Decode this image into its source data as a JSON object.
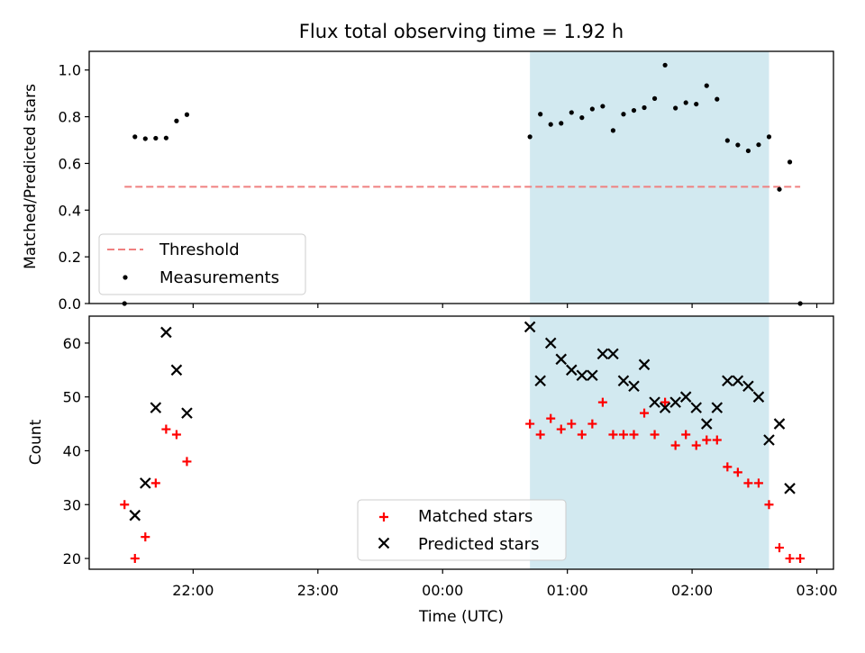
{
  "chart_data": {
    "title": "Flux total observing time = 1.92 h",
    "xlabel": "Time (UTC)",
    "x_tick_labels": [
      "22:00",
      "23:00",
      "00:00",
      "01:00",
      "02:00",
      "03:00"
    ],
    "x_tick_times": [
      "2000-01-01T22:00",
      "2000-01-01T23:00",
      "2000-01-02T00:00",
      "2000-01-02T01:00",
      "2000-01-02T02:00",
      "2000-01-02T03:00"
    ],
    "xlim": [
      "2000-01-01T21:10",
      "2000-01-02T03:08"
    ],
    "shaded_span": [
      "2000-01-02T00:42",
      "2000-01-02T02:37"
    ],
    "shaded_color": "#d2e9f0",
    "panels": [
      {
        "type": "scatter",
        "ylabel": "Matched/Predicted stars",
        "ylim": [
          0,
          1.08
        ],
        "y_ticks": [
          "0.0",
          "0.2",
          "0.4",
          "0.6",
          "0.8",
          "1.0"
        ],
        "threshold": {
          "name": "Threshold",
          "value": 0.5,
          "x": [
            "2000-01-01T21:27",
            "2000-01-02T02:52"
          ],
          "color": "#f08080"
        },
        "legend": [
          "Threshold",
          "Measurements"
        ],
        "legend_loc": "lower left",
        "series": [
          {
            "name": "Measurements",
            "color": "#000000",
            "marker": "dot",
            "points": [
              [
                "2000-01-01T21:27",
                0.0
              ],
              [
                "2000-01-01T21:32",
                0.714
              ],
              [
                "2000-01-01T21:37",
                0.706
              ],
              [
                "2000-01-01T21:42",
                0.708
              ],
              [
                "2000-01-01T21:47",
                0.709
              ],
              [
                "2000-01-01T21:52",
                0.782
              ],
              [
                "2000-01-01T21:57",
                0.809
              ],
              [
                "2000-01-02T00:42",
                0.714
              ],
              [
                "2000-01-02T00:47",
                0.811
              ],
              [
                "2000-01-02T00:52",
                0.767
              ],
              [
                "2000-01-02T00:57",
                0.772
              ],
              [
                "2000-01-02T01:02",
                0.818
              ],
              [
                "2000-01-02T01:07",
                0.796
              ],
              [
                "2000-01-02T01:12",
                0.833
              ],
              [
                "2000-01-02T01:17",
                0.845
              ],
              [
                "2000-01-02T01:22",
                0.741
              ],
              [
                "2000-01-02T01:27",
                0.811
              ],
              [
                "2000-01-02T01:32",
                0.827
              ],
              [
                "2000-01-02T01:37",
                0.839
              ],
              [
                "2000-01-02T01:42",
                0.878
              ],
              [
                "2000-01-02T01:47",
                1.021
              ],
              [
                "2000-01-02T01:52",
                0.837
              ],
              [
                "2000-01-02T01:57",
                0.86
              ],
              [
                "2000-01-02T02:02",
                0.854
              ],
              [
                "2000-01-02T02:07",
                0.933
              ],
              [
                "2000-01-02T02:12",
                0.875
              ],
              [
                "2000-01-02T02:17",
                0.698
              ],
              [
                "2000-01-02T02:22",
                0.679
              ],
              [
                "2000-01-02T02:27",
                0.654
              ],
              [
                "2000-01-02T02:32",
                0.68
              ],
              [
                "2000-01-02T02:37",
                0.714
              ],
              [
                "2000-01-02T02:42",
                0.489
              ],
              [
                "2000-01-02T02:47",
                0.606
              ],
              [
                "2000-01-02T02:52",
                0.0
              ]
            ]
          }
        ]
      },
      {
        "type": "scatter",
        "ylabel": "Count",
        "ylim": [
          18,
          65
        ],
        "y_ticks": [
          "20",
          "30",
          "40",
          "50",
          "60"
        ],
        "legend": [
          "Matched stars",
          "Predicted stars"
        ],
        "legend_loc": "lower center",
        "series": [
          {
            "name": "Matched stars",
            "color": "#ff0000",
            "marker": "plus",
            "points": [
              [
                "2000-01-01T21:27",
                30
              ],
              [
                "2000-01-01T21:32",
                20
              ],
              [
                "2000-01-01T21:37",
                24
              ],
              [
                "2000-01-01T21:42",
                34
              ],
              [
                "2000-01-01T21:47",
                44
              ],
              [
                "2000-01-01T21:52",
                43
              ],
              [
                "2000-01-01T21:57",
                38
              ],
              [
                "2000-01-02T00:42",
                45
              ],
              [
                "2000-01-02T00:47",
                43
              ],
              [
                "2000-01-02T00:52",
                46
              ],
              [
                "2000-01-02T00:57",
                44
              ],
              [
                "2000-01-02T01:02",
                45
              ],
              [
                "2000-01-02T01:07",
                43
              ],
              [
                "2000-01-02T01:12",
                45
              ],
              [
                "2000-01-02T01:17",
                49
              ],
              [
                "2000-01-02T01:22",
                43
              ],
              [
                "2000-01-02T01:27",
                43
              ],
              [
                "2000-01-02T01:32",
                43
              ],
              [
                "2000-01-02T01:37",
                47
              ],
              [
                "2000-01-02T01:42",
                43
              ],
              [
                "2000-01-02T01:47",
                49
              ],
              [
                "2000-01-02T01:52",
                41
              ],
              [
                "2000-01-02T01:57",
                43
              ],
              [
                "2000-01-02T02:02",
                41
              ],
              [
                "2000-01-02T02:07",
                42
              ],
              [
                "2000-01-02T02:12",
                42
              ],
              [
                "2000-01-02T02:17",
                37
              ],
              [
                "2000-01-02T02:22",
                36
              ],
              [
                "2000-01-02T02:27",
                34
              ],
              [
                "2000-01-02T02:32",
                34
              ],
              [
                "2000-01-02T02:37",
                30
              ],
              [
                "2000-01-02T02:42",
                22
              ],
              [
                "2000-01-02T02:47",
                20
              ],
              [
                "2000-01-02T02:52",
                20
              ]
            ]
          },
          {
            "name": "Predicted stars",
            "color": "#000000",
            "marker": "x",
            "points": [
              [
                "2000-01-01T21:32",
                28
              ],
              [
                "2000-01-01T21:37",
                34
              ],
              [
                "2000-01-01T21:42",
                48
              ],
              [
                "2000-01-01T21:47",
                62
              ],
              [
                "2000-01-01T21:52",
                55
              ],
              [
                "2000-01-01T21:57",
                47
              ],
              [
                "2000-01-02T00:42",
                63
              ],
              [
                "2000-01-02T00:47",
                53
              ],
              [
                "2000-01-02T00:52",
                60
              ],
              [
                "2000-01-02T00:57",
                57
              ],
              [
                "2000-01-02T01:02",
                55
              ],
              [
                "2000-01-02T01:07",
                54
              ],
              [
                "2000-01-02T01:12",
                54
              ],
              [
                "2000-01-02T01:17",
                58
              ],
              [
                "2000-01-02T01:22",
                58
              ],
              [
                "2000-01-02T01:27",
                53
              ],
              [
                "2000-01-02T01:32",
                52
              ],
              [
                "2000-01-02T01:37",
                56
              ],
              [
                "2000-01-02T01:42",
                49
              ],
              [
                "2000-01-02T01:47",
                48
              ],
              [
                "2000-01-02T01:52",
                49
              ],
              [
                "2000-01-02T01:57",
                50
              ],
              [
                "2000-01-02T02:02",
                48
              ],
              [
                "2000-01-02T02:07",
                45
              ],
              [
                "2000-01-02T02:12",
                48
              ],
              [
                "2000-01-02T02:17",
                53
              ],
              [
                "2000-01-02T02:22",
                53
              ],
              [
                "2000-01-02T02:27",
                52
              ],
              [
                "2000-01-02T02:32",
                50
              ],
              [
                "2000-01-02T02:37",
                42
              ],
              [
                "2000-01-02T02:42",
                45
              ],
              [
                "2000-01-02T02:47",
                33
              ]
            ]
          }
        ]
      }
    ]
  }
}
